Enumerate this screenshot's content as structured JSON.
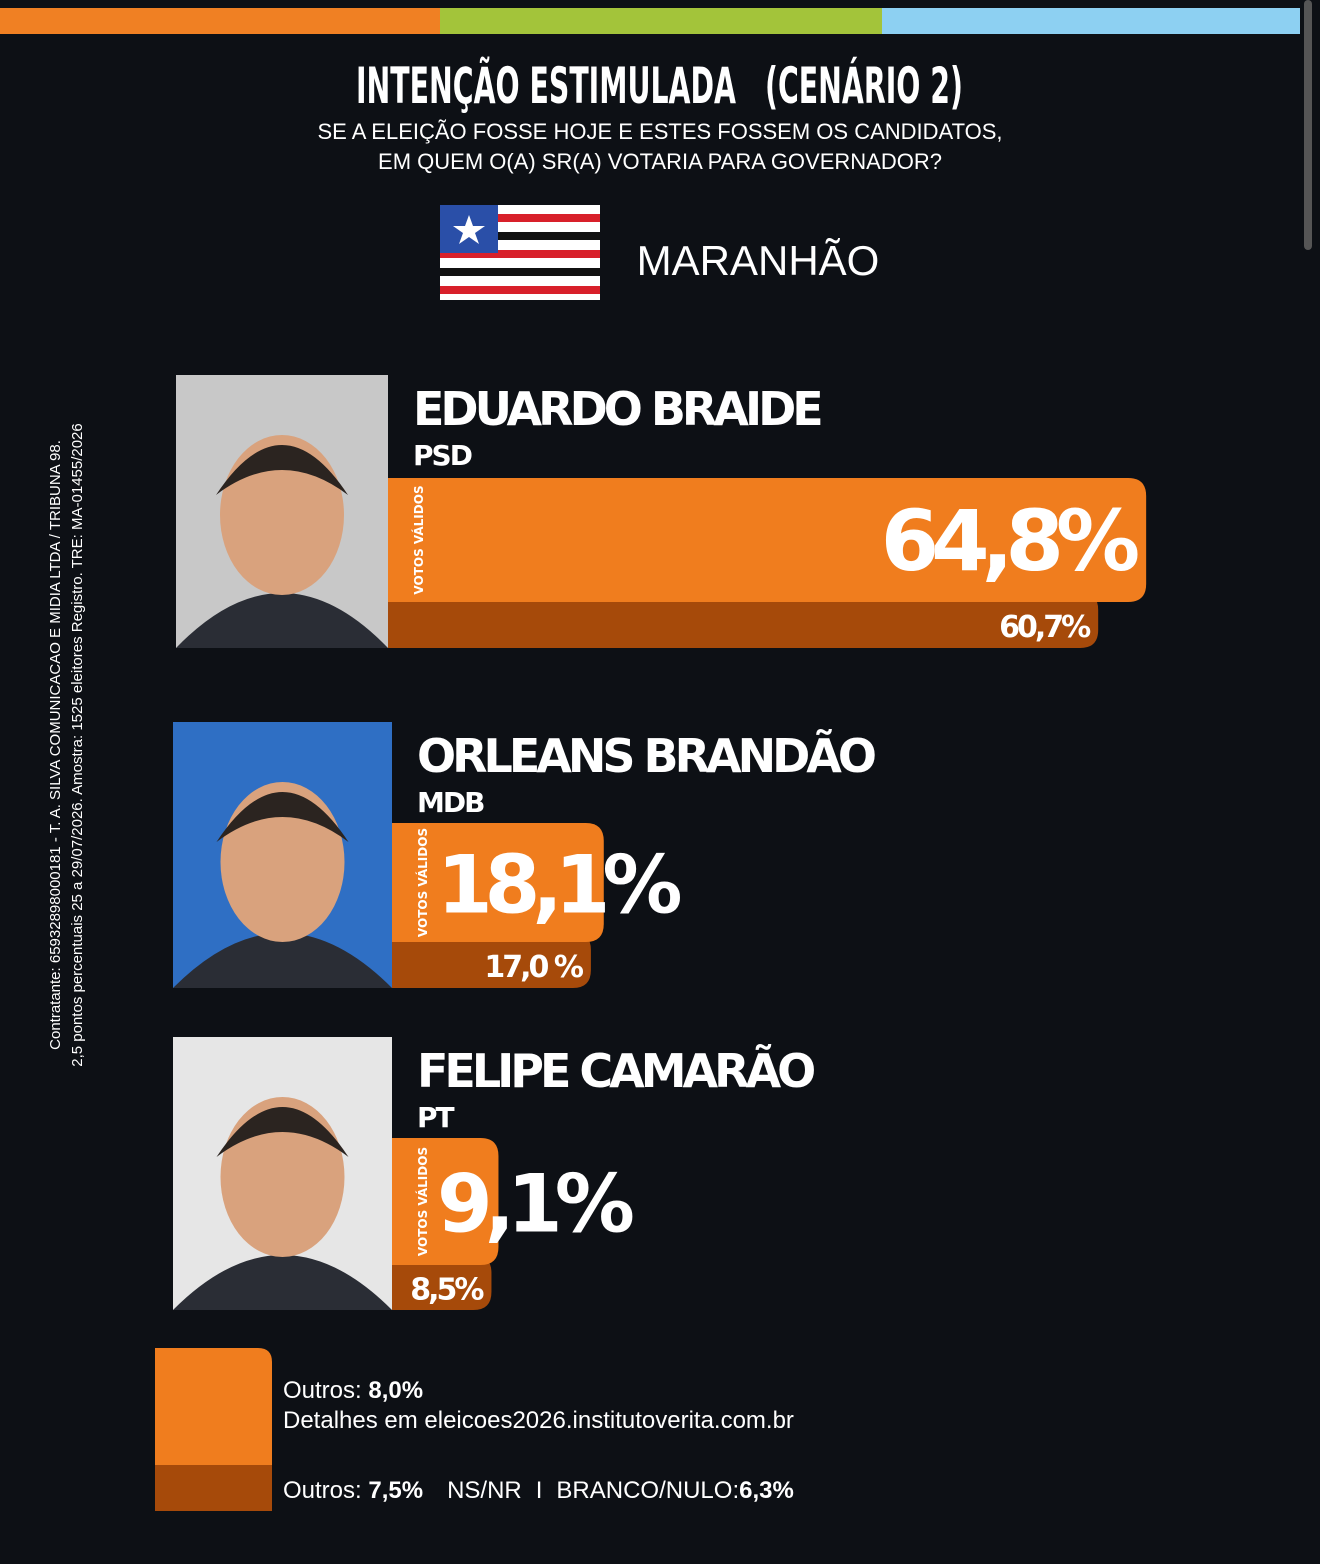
{
  "header": {
    "title": "INTENÇÃO ESTIMULADA",
    "scenario": "(CENÁRIO 2)",
    "question": [
      "SE A ELEIÇÃO FOSSE HOJE E ESTES FOSSEM OS CANDIDATOS,",
      "EM QUEM O(A) SR(A) VOTARIA PARA GOVERNADOR?"
    ],
    "state": "MARANHÃO"
  },
  "side_note": [
    "Contratante: 65932898000181 - T. A. SILVA COMUNICACAO E MIDIA LTDA / TRIBUNA 98.",
    "2,5 pontos percentuais 25 a 29/07/2026. Amostra: 1525 eleitores Registro. TRE: MA-01455/2026"
  ],
  "chart_data": {
    "type": "bar",
    "categories": [
      "EDUARDO BRAIDE",
      "ORLEANS BRANDÃO",
      "FELIPE CAMARÃO"
    ],
    "parties": [
      "PSD",
      "MDB",
      "PT"
    ],
    "series": [
      {
        "name": "VOTOS VÁLIDOS",
        "color": "#f07d1e",
        "values": [
          64.8,
          18.1,
          9.1
        ],
        "value_labels": [
          "64,8%",
          "18,1%",
          "9,1%"
        ]
      },
      {
        "color": "#a64a0a",
        "values": [
          60.7,
          17.0,
          8.5
        ],
        "value_labels": [
          "60,7%",
          "17,0 %",
          "8,5%"
        ]
      }
    ]
  },
  "footer": {
    "valid": {
      "label": "Outros:",
      "value": "8,0%"
    },
    "details": "Detalhes em eleicoes2026.institutoverita.com.br",
    "total": {
      "label": "Outros:",
      "value": "7,5%",
      "nsnr": "NS/NR",
      "sep": "I",
      "blank_label": "BRANCO/NULO:",
      "blank_value": "6,3%"
    }
  }
}
